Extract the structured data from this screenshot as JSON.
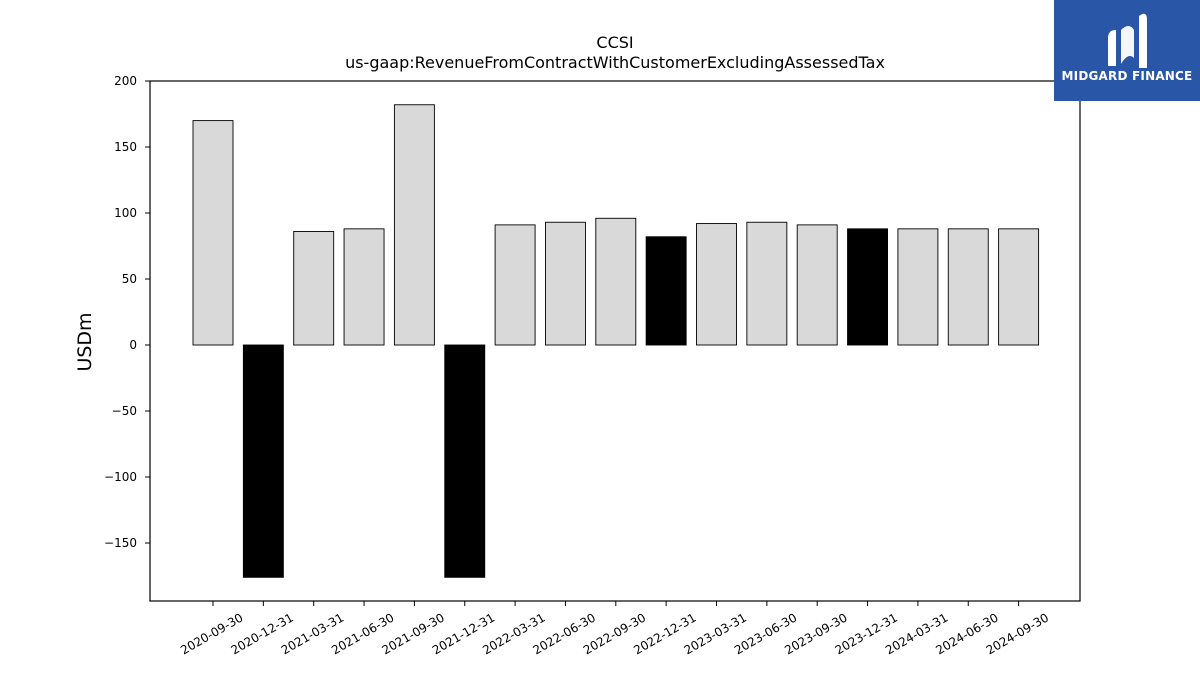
{
  "chart_data": {
    "type": "bar",
    "title": "CCSI",
    "subtitle": "us-gaap:RevenueFromContractWithCustomerExcludingAssessedTax",
    "ylabel": "USDm",
    "xlabel": "",
    "ylim": [
      -193,
      200
    ],
    "yticks": [
      -150,
      -100,
      -50,
      0,
      50,
      100,
      150,
      200
    ],
    "ytick_labels": [
      "−150",
      "−100",
      "−50",
      "0",
      "50",
      "100",
      "150",
      "200"
    ],
    "categories": [
      "2020-09-30",
      "2020-12-31",
      "2021-03-31",
      "2021-06-30",
      "2021-09-30",
      "2021-12-31",
      "2022-03-31",
      "2022-06-30",
      "2022-09-30",
      "2022-12-31",
      "2023-03-31",
      "2023-06-30",
      "2023-09-30",
      "2023-12-31",
      "2024-03-31",
      "2024-06-30",
      "2024-09-30"
    ],
    "values": [
      170,
      -176,
      86,
      88,
      182,
      -176,
      91,
      93,
      96,
      82,
      92,
      93,
      91,
      88,
      88,
      88,
      88
    ],
    "highlight": [
      false,
      true,
      false,
      false,
      false,
      true,
      false,
      false,
      false,
      true,
      false,
      false,
      false,
      true,
      false,
      false,
      false
    ],
    "colors": {
      "normal": "#d9d9d9",
      "highlight": "#000000",
      "edge": "#000000"
    },
    "grid": false,
    "legend": "none"
  },
  "logo": {
    "text": "MIDGARD FINANCE",
    "background": "#2a56a8"
  }
}
